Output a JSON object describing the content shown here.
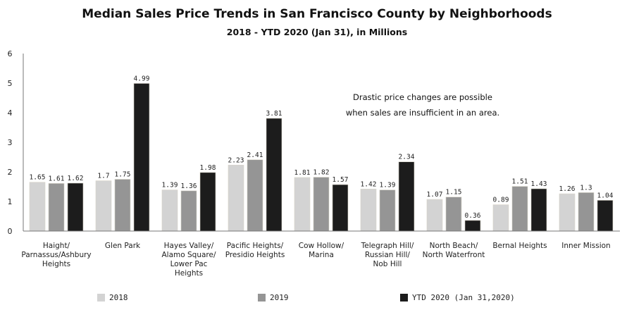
{
  "chart_data": {
    "type": "bar",
    "title": "Median Sales Price Trends in San Francisco County by Neighborhoods",
    "subtitle": "2018 - YTD 2020 (Jan 31), in Millions",
    "xlabel": "",
    "ylabel": "",
    "ylim": [
      0,
      6
    ],
    "yticks": [
      0,
      1,
      2,
      3,
      4,
      5,
      6
    ],
    "grid": false,
    "legend_position": "bottom",
    "categories": [
      "Haight/ Parnassus/Ashbury Heights",
      "Glen Park",
      "Hayes Valley/ Alamo Square/ Lower Pac Heights",
      "Pacific Heights/ Presidio Heights",
      "Cow Hollow/ Marina",
      "Telegraph Hill/ Russian Hill/ Nob Hill",
      "North Beach/ North Waterfront",
      "Bernal Heights",
      "Inner Mission"
    ],
    "category_lines": [
      [
        "Haight/",
        "Parnassus/Ashbury",
        "Heights"
      ],
      [
        "Glen Park"
      ],
      [
        "Hayes Valley/",
        "Alamo Square/",
        "Lower Pac",
        "Heights"
      ],
      [
        "Pacific Heights/",
        "Presidio Heights"
      ],
      [
        "Cow Hollow/",
        "Marina"
      ],
      [
        "Telegraph Hill/",
        "Russian Hill/",
        "Nob Hill"
      ],
      [
        "North Beach/",
        "North Waterfront"
      ],
      [
        "Bernal Heights"
      ],
      [
        "Inner Mission"
      ]
    ],
    "series": [
      {
        "name": "2018",
        "color": "#d3d3d3",
        "values": [
          1.65,
          1.7,
          1.39,
          2.23,
          1.81,
          1.42,
          1.07,
          0.89,
          1.26
        ],
        "labels": [
          "1.65",
          "1.7",
          "1.39",
          "2.23",
          "1.81",
          "1.42",
          "1.07",
          "0.89",
          "1.26"
        ]
      },
      {
        "name": "2019",
        "color": "#959595",
        "values": [
          1.61,
          1.75,
          1.36,
          2.41,
          1.82,
          1.39,
          1.15,
          1.51,
          1.3
        ],
        "labels": [
          "1.61",
          "1.75",
          "1.36",
          "2.41",
          "1.82",
          "1.39",
          "1.15",
          "1.51",
          "1.3"
        ]
      },
      {
        "name": "YTD 2020 (Jan 31,2020)",
        "color": "#1c1c1c",
        "values": [
          1.62,
          4.99,
          1.98,
          3.81,
          1.57,
          2.34,
          0.36,
          1.43,
          1.04
        ],
        "labels": [
          "1.62",
          "4.99",
          "1.98",
          "3.81",
          "1.57",
          "2.34",
          "0.36",
          "1.43",
          "1.04"
        ]
      }
    ],
    "annotation": [
      "Drastic price changes are possible",
      "when sales are insufficient in an area."
    ]
  }
}
